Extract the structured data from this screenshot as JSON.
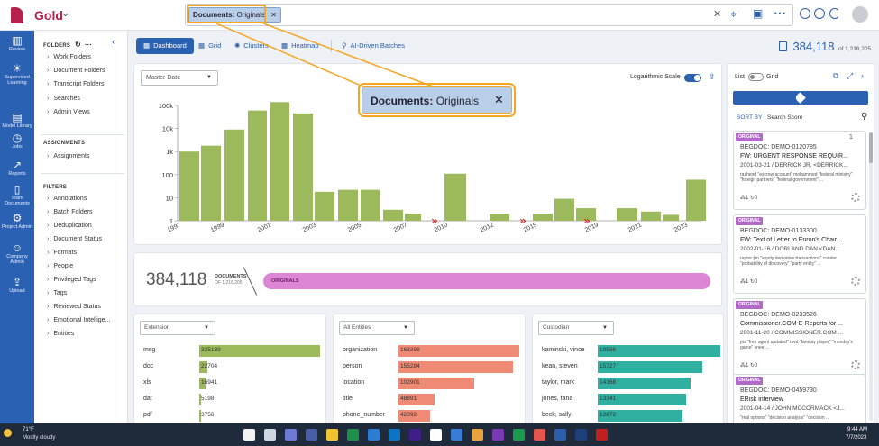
{
  "app": {
    "name": "Gold"
  },
  "search": {
    "chip": {
      "key": "Documents:",
      "value": "Originals"
    }
  },
  "callout": {
    "key": "Documents:",
    "value": "Originals"
  },
  "nav": [
    {
      "label": "Review",
      "icon": "bar-chart-icon",
      "glyph": "▥"
    },
    {
      "label": "Supervised Learning",
      "icon": "lightbulb-icon",
      "glyph": "☀"
    },
    {
      "label": "Model Library",
      "icon": "book-icon",
      "glyph": "▤"
    },
    {
      "label": "Jobs",
      "icon": "clock-icon",
      "glyph": "◷"
    },
    {
      "label": "Reports",
      "icon": "line-chart-icon",
      "glyph": "↗"
    },
    {
      "label": "Team Documents",
      "icon": "document-icon",
      "glyph": "▯"
    },
    {
      "label": "Project Admin",
      "icon": "gear-icon",
      "glyph": "⚙"
    },
    {
      "label": "Company Admin",
      "icon": "users-icon",
      "glyph": "☺"
    },
    {
      "label": "Upload",
      "icon": "upload-icon",
      "glyph": "⇪"
    }
  ],
  "panel": {
    "folders_title": "FOLDERS",
    "folders": [
      "Work Folders",
      "Document Folders",
      "Transcript Folders",
      "Searches",
      "Admin Views"
    ],
    "assignments_title": "ASSIGNMENTS",
    "assignments": [
      "Assignments"
    ],
    "filters_title": "FILTERS",
    "filters": [
      "Annotations",
      "Batch Folders",
      "Deduplication",
      "Document Status",
      "Formats",
      "People",
      "Privileged Tags",
      "Tags",
      "Reviewed Status",
      "Emotional Intellige...",
      "Entities"
    ]
  },
  "tabs": [
    {
      "label": "Dashboard",
      "icon": "dashboard-icon",
      "glyph": "▦"
    },
    {
      "label": "Grid",
      "icon": "grid-icon",
      "glyph": "▦"
    },
    {
      "label": "Clusters",
      "icon": "clusters-icon",
      "glyph": "✺"
    },
    {
      "label": "Heatmap",
      "icon": "heatmap-icon",
      "glyph": "▩"
    },
    {
      "label": "AI-Driven Batches",
      "icon": "ai-icon",
      "glyph": "⚲"
    }
  ],
  "doc_count": {
    "value": "384,118",
    "of": "of 1,216,205"
  },
  "chart_controls": {
    "date_field": "Master Date",
    "log_label": "Logarithmic Scale"
  },
  "chart_data": {
    "type": "bar",
    "scale": "log",
    "ylim": [
      1,
      100000
    ],
    "yticks": [
      "1",
      "10",
      "100",
      "1k",
      "10k",
      "100k"
    ],
    "xticks": [
      "1997",
      "1999",
      "2001",
      "2003",
      "2005",
      "2007",
      "2010",
      "2012",
      "2015",
      "2019",
      "2021",
      "2023"
    ],
    "values": [
      1000,
      1800,
      9000,
      60000,
      140000,
      45000,
      18,
      22,
      22,
      3,
      2,
      110,
      2,
      2,
      9,
      3.5,
      3.5,
      2.5,
      1.8,
      60
    ],
    "break_markers": [
      "»",
      "»",
      "»"
    ],
    "color": "#9cb95b"
  },
  "originals": {
    "count": "384,118",
    "label": "DOCUMENTS",
    "of": "OF 1,216,205",
    "bar_label": "ORIGINALS",
    "color": "#de86d6"
  },
  "facets": [
    {
      "select": "Extension",
      "color": "#9cb95b",
      "rows": [
        {
          "label": "msg",
          "value": "325139",
          "pct": 1.0
        },
        {
          "label": "doc",
          "value": "22704",
          "pct": 0.07
        },
        {
          "label": "xls",
          "value": "16941",
          "pct": 0.052
        },
        {
          "label": "dat",
          "value": "5198",
          "pct": 0.016
        },
        {
          "label": "pdf",
          "value": "3756",
          "pct": 0.012
        }
      ]
    },
    {
      "select": "All Entities",
      "color": "#ef8a74",
      "rows": [
        {
          "label": "organization",
          "value": "163398",
          "pct": 1.0
        },
        {
          "label": "person",
          "value": "155284",
          "pct": 0.95
        },
        {
          "label": "location",
          "value": "102901",
          "pct": 0.63
        },
        {
          "label": "title",
          "value": "48891",
          "pct": 0.3
        },
        {
          "label": "phone_number",
          "value": "42092",
          "pct": 0.26
        }
      ]
    },
    {
      "select": "Custodian",
      "color": "#2fb0a0",
      "rows": [
        {
          "label": "kaminski, vince",
          "value": "18596",
          "pct": 1.0
        },
        {
          "label": "kean, steven",
          "value": "15727",
          "pct": 0.85
        },
        {
          "label": "taylor, mark",
          "value": "14168",
          "pct": 0.76
        },
        {
          "label": "jones, tana",
          "value": "13341",
          "pct": 0.72
        },
        {
          "label": "beck, sally",
          "value": "12872",
          "pct": 0.69
        }
      ]
    }
  ],
  "review": {
    "list_label": "List",
    "grid_label": "Grid",
    "sort_by": "SORT BY",
    "sort_value": "Search Score",
    "cards": [
      {
        "badge": "ORIGINAL",
        "begdoc": "BEGDOC: DEMO-0120785",
        "subject": "FW: URGENT RESPONSE REQUIR...",
        "meta": "2001-03-21 / DERRICK JR. <DERRICK...",
        "hits": "rashend \"escrow account\" mohammed \"federal ministry\" \"foreign partners\" \"federal government\" ...",
        "counts": "⁂1 ↻0",
        "clip": "1"
      },
      {
        "badge": "ORIGINAL",
        "begdoc": "BEGDOC: DEMO-0133300",
        "subject": "FW: Text of Letter to Enron's Chair...",
        "meta": "2002-01-16 / DORLAND DAN <DAN...",
        "hits": "raptor ljm \"equity derivative transactions\" condor \"probability of discovery\" \"party entity\" ...",
        "counts": "⁂1 ↻0",
        "clip": ""
      },
      {
        "badge": "ORIGINAL",
        "begdoc": "BEGDOC: DEMO-0233526",
        "subject": "Commissioner.COM E-Reports for ...",
        "meta": "2001-11-20 / COMMISSIONER.COM ...",
        "hits": "pts \"free agent updated\" rsvd \"fantasy player\" \"monday's game\" knee ...",
        "counts": "⁂1 ↻0",
        "clip": ""
      },
      {
        "badge": "ORIGINAL",
        "begdoc": "BEGDOC: DEMO-0459730",
        "subject": "ERisk interview",
        "meta": "2001-04-14 / JOHN MCCORMACK <J...",
        "hits": "\"real options\" \"decision analysis\" \"decision ...",
        "counts": "",
        "clip": ""
      }
    ]
  },
  "taskbar": {
    "temp": "71°F",
    "weather": "Mostly cloudy",
    "time": "9:44 AM",
    "date": "7/7/2023",
    "icons": [
      "#f2f2f2",
      "#d0d6df",
      "#6d7bd6",
      "#4a5ea6",
      "#f1c232",
      "#1c8f4a",
      "#2b7cd3",
      "#0b74c5",
      "#3e1f8a",
      "#ffffff",
      "#3a7bd5",
      "#e8a33d",
      "#7a3ab5",
      "#1a9b4b",
      "#e2564d",
      "#2b5fae",
      "#1d3f7a",
      "#c21f1f"
    ]
  }
}
